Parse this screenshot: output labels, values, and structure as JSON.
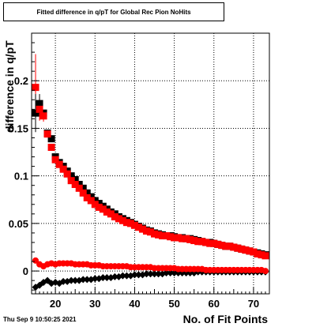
{
  "title": "Fitted difference in q/pT for Global Rec Pion NoHits",
  "datestamp": "Thu Sep  9 10:50:25 2021",
  "colors": {
    "series_red": "#ff0000",
    "series_black": "#000000",
    "grid": "#000000"
  },
  "chart_data": {
    "type": "scatter",
    "title": "Fitted difference in q/pT for Global Rec Pion NoHits",
    "xlabel": "No. of Fit Points",
    "ylabel": "difference in q/pT",
    "xlim": [
      14,
      74
    ],
    "ylim": [
      -0.024,
      0.25
    ],
    "xticks": [
      20,
      30,
      40,
      50,
      60,
      70
    ],
    "yticks": [
      0,
      0.05,
      0.1,
      0.15,
      0.2
    ],
    "ytick_labels": [
      "0",
      "0.05",
      "0.1",
      "0.15",
      "0.2"
    ],
    "grid": true,
    "series": [
      {
        "color": "#ff0000",
        "marker": "square",
        "x": [
          15,
          16,
          17,
          18,
          19,
          20,
          21,
          22,
          23,
          24,
          25,
          26,
          27,
          28,
          29,
          30,
          31,
          32,
          33,
          34,
          35,
          36,
          37,
          38,
          39,
          40,
          41,
          42,
          43,
          44,
          45,
          46,
          47,
          48,
          49,
          50,
          51,
          52,
          53,
          54,
          55,
          56,
          57,
          58,
          59,
          60,
          61,
          62,
          63,
          64,
          65,
          66,
          67,
          68,
          69,
          70,
          71,
          72,
          73
        ],
        "y": [
          0.193,
          0.17,
          0.163,
          0.144,
          0.13,
          0.117,
          0.112,
          0.107,
          0.102,
          0.095,
          0.091,
          0.087,
          0.082,
          0.077,
          0.074,
          0.07,
          0.067,
          0.065,
          0.062,
          0.06,
          0.057,
          0.055,
          0.053,
          0.051,
          0.05,
          0.048,
          0.046,
          0.044,
          0.042,
          0.041,
          0.039,
          0.038,
          0.037,
          0.037,
          0.036,
          0.035,
          0.035,
          0.034,
          0.034,
          0.033,
          0.032,
          0.031,
          0.031,
          0.03,
          0.029,
          0.029,
          0.028,
          0.027,
          0.026,
          0.026,
          0.025,
          0.024,
          0.023,
          0.022,
          0.021,
          0.02,
          0.018,
          0.017,
          0.016
        ]
      },
      {
        "color": "#000000",
        "marker": "square",
        "x": [
          15,
          16,
          17,
          18,
          19,
          20,
          21,
          22,
          23,
          24,
          25,
          26,
          27,
          28,
          29,
          30,
          31,
          32,
          33,
          34,
          35,
          36,
          37,
          38,
          39,
          40,
          41,
          42,
          43,
          44,
          45,
          46,
          47,
          48,
          49,
          50,
          51,
          52,
          53,
          54,
          55,
          56,
          57,
          58,
          59,
          60,
          61,
          62,
          63,
          64,
          65,
          66,
          67,
          68,
          69,
          70,
          71,
          72,
          73
        ],
        "y": [
          0.166,
          0.176,
          0.166,
          0.145,
          0.139,
          0.12,
          0.114,
          0.11,
          0.105,
          0.1,
          0.096,
          0.091,
          0.087,
          0.082,
          0.078,
          0.074,
          0.071,
          0.068,
          0.065,
          0.062,
          0.06,
          0.057,
          0.055,
          0.053,
          0.051,
          0.049,
          0.047,
          0.045,
          0.043,
          0.042,
          0.04,
          0.039,
          0.038,
          0.037,
          0.037,
          0.036,
          0.035,
          0.035,
          0.034,
          0.034,
          0.033,
          0.032,
          0.031,
          0.03,
          0.03,
          0.029,
          0.028,
          0.027,
          0.026,
          0.026,
          0.025,
          0.024,
          0.023,
          0.022,
          0.021,
          0.02,
          0.019,
          0.018,
          0.017
        ]
      },
      {
        "color": "#ff0000",
        "marker": "circle",
        "x": [
          15,
          16,
          17,
          18,
          19,
          20,
          21,
          22,
          23,
          24,
          25,
          26,
          27,
          28,
          29,
          30,
          31,
          32,
          33,
          34,
          35,
          36,
          37,
          38,
          39,
          40,
          41,
          42,
          43,
          44,
          45,
          46,
          47,
          48,
          49,
          50,
          51,
          52,
          53,
          54,
          55,
          56,
          57,
          58,
          59,
          60,
          61,
          62,
          63,
          64,
          65,
          66,
          67,
          68,
          69,
          70,
          71,
          72,
          73
        ],
        "y": [
          0.011,
          0.007,
          0.005,
          0.007,
          0.008,
          0.007,
          0.008,
          0.008,
          0.008,
          0.008,
          0.007,
          0.007,
          0.007,
          0.007,
          0.006,
          0.006,
          0.006,
          0.005,
          0.005,
          0.005,
          0.005,
          0.005,
          0.005,
          0.005,
          0.004,
          0.004,
          0.004,
          0.004,
          0.004,
          0.004,
          0.003,
          0.003,
          0.003,
          0.003,
          0.003,
          0.003,
          0.002,
          0.002,
          0.002,
          0.002,
          0.002,
          0.002,
          0.002,
          0.001,
          0.001,
          0.001,
          0.001,
          0.001,
          0.001,
          0.001,
          0.001,
          0.001,
          0.001,
          0.001,
          0.001,
          0.001,
          0.001,
          0.001,
          0.0
        ]
      },
      {
        "color": "#000000",
        "marker": "diamond",
        "x": [
          15,
          16,
          17,
          18,
          19,
          20,
          21,
          22,
          23,
          24,
          25,
          26,
          27,
          28,
          29,
          30,
          31,
          32,
          33,
          34,
          35,
          36,
          37,
          38,
          39,
          40,
          41,
          42,
          43,
          44,
          45,
          46,
          47,
          48,
          49,
          50,
          51,
          52,
          53,
          54,
          55,
          56,
          57,
          58,
          59,
          60,
          61,
          62,
          63,
          64,
          65,
          66,
          67,
          68,
          69,
          70,
          71,
          72,
          73
        ],
        "y": [
          -0.017,
          -0.015,
          -0.012,
          -0.01,
          -0.013,
          -0.012,
          -0.013,
          -0.011,
          -0.011,
          -0.01,
          -0.01,
          -0.01,
          -0.009,
          -0.009,
          -0.009,
          -0.008,
          -0.008,
          -0.007,
          -0.007,
          -0.007,
          -0.006,
          -0.006,
          -0.005,
          -0.005,
          -0.005,
          -0.004,
          -0.004,
          -0.004,
          -0.003,
          -0.003,
          -0.003,
          -0.003,
          -0.003,
          -0.002,
          -0.002,
          -0.002,
          -0.002,
          -0.002,
          -0.002,
          -0.002,
          -0.002,
          -0.001,
          -0.001,
          -0.001,
          -0.001,
          -0.001,
          -0.001,
          -0.001,
          -0.001,
          -0.001,
          -0.001,
          -0.001,
          -0.001,
          -0.001,
          -0.001,
          -0.001,
          -0.001,
          -0.001,
          -0.001
        ]
      }
    ]
  }
}
